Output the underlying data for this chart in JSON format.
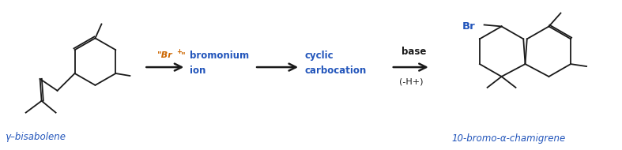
{
  "background_color": "#ffffff",
  "text_color": "#1a1a1a",
  "label_color": "#2255bb",
  "arrow_color": "#1a1a1a",
  "reagent_color": "#cc6600",
  "figsize": [
    7.87,
    1.9
  ],
  "dpi": 100,
  "gamma_bisabolene_label": "γ–bisabolene",
  "product_label": "10-bromo-α-chamigrene",
  "step1_label": "bromonium\nion",
  "step2_label": "cyclic\ncarbocation",
  "reagent1": "\"Br+\"",
  "reagent2": "base",
  "byproduct2": "(-H+)"
}
